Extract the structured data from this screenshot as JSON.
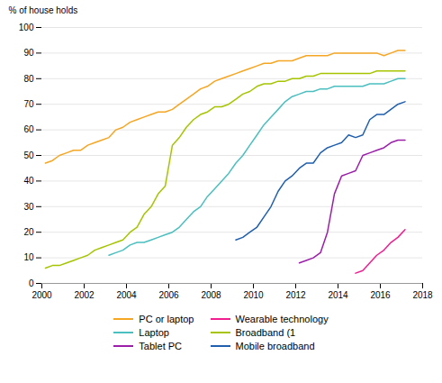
{
  "chart_data": {
    "type": "line",
    "ylabel": "% of house holds",
    "xlim": [
      2000,
      2018
    ],
    "xticks": [
      2000,
      2002,
      2004,
      2006,
      2008,
      2010,
      2012,
      2014,
      2016,
      2018
    ],
    "ylim": [
      0,
      100
    ],
    "yticks": [
      0,
      10,
      20,
      30,
      40,
      50,
      60,
      70,
      80,
      90,
      100
    ],
    "grid": true,
    "legend": "bottom",
    "series": [
      {
        "name": "PC or laptop",
        "color": "#F5A623",
        "x": [
          2000.17,
          2000.5,
          2000.83,
          2001.17,
          2001.5,
          2001.83,
          2002.17,
          2002.5,
          2002.83,
          2003.17,
          2003.5,
          2003.83,
          2004.17,
          2004.5,
          2004.83,
          2005.17,
          2005.5,
          2005.83,
          2006.17,
          2006.5,
          2006.83,
          2007.17,
          2007.5,
          2007.83,
          2008.17,
          2008.5,
          2008.83,
          2009.17,
          2009.5,
          2009.83,
          2010.17,
          2010.5,
          2010.83,
          2011.17,
          2011.5,
          2011.83,
          2012.17,
          2012.5,
          2012.83,
          2013.17,
          2013.5,
          2013.83,
          2014.17,
          2014.5,
          2014.83,
          2015.17,
          2015.5,
          2015.83,
          2016.17,
          2016.5,
          2016.83,
          2017.17
        ],
        "values": [
          47,
          48,
          50,
          51,
          52,
          52,
          54,
          55,
          56,
          57,
          60,
          61,
          63,
          64,
          65,
          66,
          67,
          67,
          68,
          70,
          72,
          74,
          76,
          77,
          79,
          80,
          81,
          82,
          83,
          84,
          85,
          86,
          86,
          87,
          87,
          87,
          88,
          89,
          89,
          89,
          89,
          90,
          90,
          90,
          90,
          90,
          90,
          90,
          89,
          90,
          91,
          91
        ]
      },
      {
        "name": "Laptop",
        "color": "#4BBFBF",
        "x": [
          2003.17,
          2003.5,
          2003.83,
          2004.17,
          2004.5,
          2004.83,
          2005.17,
          2005.5,
          2005.83,
          2006.17,
          2006.5,
          2006.83,
          2007.17,
          2007.5,
          2007.83,
          2008.17,
          2008.5,
          2008.83,
          2009.17,
          2009.5,
          2009.83,
          2010.17,
          2010.5,
          2010.83,
          2011.17,
          2011.5,
          2011.83,
          2012.17,
          2012.5,
          2012.83,
          2013.17,
          2013.5,
          2013.83,
          2014.17,
          2014.5,
          2014.83,
          2015.17,
          2015.5,
          2015.83,
          2016.17,
          2016.5,
          2016.83,
          2017.17
        ],
        "values": [
          11,
          12,
          13,
          15,
          16,
          16,
          17,
          18,
          19,
          20,
          22,
          25,
          28,
          30,
          34,
          37,
          40,
          43,
          47,
          50,
          54,
          58,
          62,
          65,
          68,
          71,
          73,
          74,
          75,
          75,
          76,
          76,
          77,
          77,
          77,
          77,
          77,
          78,
          78,
          78,
          79,
          80,
          80
        ]
      },
      {
        "name": "Tablet PC",
        "color": "#9B1FA8",
        "x": [
          2012.17,
          2012.5,
          2012.83,
          2013.17,
          2013.5,
          2013.83,
          2014.17,
          2014.5,
          2014.83,
          2015.17,
          2015.5,
          2015.83,
          2016.17,
          2016.5,
          2016.83,
          2017.17
        ],
        "values": [
          8,
          9,
          10,
          12,
          20,
          35,
          42,
          43,
          44,
          50,
          51,
          52,
          53,
          55,
          56,
          56
        ]
      },
      {
        "name": "Wearable technology",
        "color": "#F01E8F",
        "x": [
          2014.83,
          2015.17,
          2015.5,
          2015.83,
          2016.17,
          2016.5,
          2016.83,
          2017.17
        ],
        "values": [
          4,
          5,
          8,
          11,
          13,
          16,
          18,
          21
        ]
      },
      {
        "name": "Broadband (1",
        "color": "#A8C400",
        "x": [
          2000.17,
          2000.5,
          2000.83,
          2001.17,
          2001.5,
          2001.83,
          2002.17,
          2002.5,
          2002.83,
          2003.17,
          2003.5,
          2003.83,
          2004.17,
          2004.5,
          2004.83,
          2005.17,
          2005.5,
          2005.83,
          2006.17,
          2006.5,
          2006.83,
          2007.17,
          2007.5,
          2007.83,
          2008.17,
          2008.5,
          2008.83,
          2009.17,
          2009.5,
          2009.83,
          2010.17,
          2010.5,
          2010.83,
          2011.17,
          2011.5,
          2011.83,
          2012.17,
          2012.5,
          2012.83,
          2013.17,
          2013.5,
          2013.83,
          2014.17,
          2014.5,
          2014.83,
          2015.17,
          2015.5,
          2015.83,
          2016.17,
          2016.5,
          2016.83,
          2017.17
        ],
        "values": [
          6,
          7,
          7,
          8,
          9,
          10,
          11,
          13,
          14,
          15,
          16,
          17,
          20,
          22,
          27,
          30,
          35,
          38,
          54,
          57,
          61,
          64,
          66,
          67,
          69,
          69,
          70,
          72,
          74,
          75,
          77,
          78,
          78,
          79,
          79,
          80,
          80,
          81,
          81,
          82,
          82,
          82,
          82,
          82,
          82,
          82,
          82,
          83,
          83,
          83,
          83,
          83
        ]
      },
      {
        "name": "Mobile broadband",
        "color": "#1F5FAD",
        "x": [
          2009.17,
          2009.5,
          2009.83,
          2010.17,
          2010.5,
          2010.83,
          2011.17,
          2011.5,
          2011.83,
          2012.17,
          2012.5,
          2012.83,
          2013.17,
          2013.5,
          2013.83,
          2014.17,
          2014.5,
          2014.83,
          2015.17,
          2015.5,
          2015.83,
          2016.17,
          2016.5,
          2016.83,
          2017.17
        ],
        "values": [
          17,
          18,
          20,
          22,
          26,
          30,
          36,
          40,
          42,
          45,
          47,
          47,
          51,
          53,
          54,
          55,
          58,
          57,
          58,
          64,
          66,
          66,
          68,
          70,
          71
        ]
      }
    ]
  }
}
